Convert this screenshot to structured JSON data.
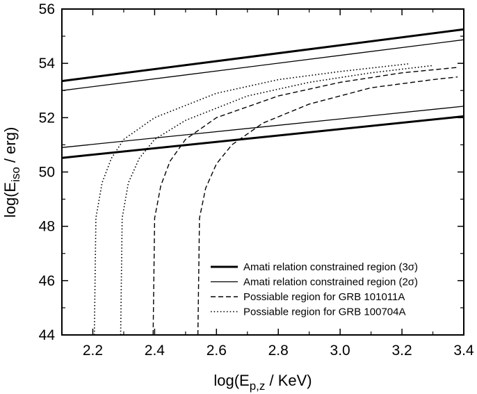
{
  "chart_data": {
    "type": "line",
    "xlabel": "log(E",
    "xlabel_sub": "p,z",
    "xlabel_tail": " / KeV)",
    "ylabel": "log(E",
    "ylabel_sub": "iso",
    "ylabel_tail": " / erg)",
    "xlim": [
      2.1,
      3.4
    ],
    "ylim": [
      44,
      56
    ],
    "x_ticks": [
      "2.2",
      "2.4",
      "2.6",
      "2.8",
      "3.0",
      "3.2",
      "3.4"
    ],
    "y_ticks": [
      "44",
      "46",
      "48",
      "50",
      "52",
      "54",
      "56"
    ],
    "grid": false,
    "legend_position": "bottom-right",
    "series": [
      {
        "name": "Amati relation constrained region (3σ)",
        "style": "thick-solid",
        "lines": [
          [
            [
              2.1,
              53.35
            ],
            [
              3.4,
              55.25
            ]
          ],
          [
            [
              2.1,
              50.52
            ],
            [
              3.4,
              52.05
            ]
          ]
        ]
      },
      {
        "name": "Amati relation constrained region (2σ)",
        "style": "thin-solid",
        "lines": [
          [
            [
              2.1,
              53.0
            ],
            [
              3.4,
              54.87
            ]
          ],
          [
            [
              2.1,
              50.9
            ],
            [
              3.4,
              52.42
            ]
          ]
        ]
      },
      {
        "name": "Possiable region for GRB 101011A",
        "style": "dashed",
        "lines": [
          [
            [
              2.395,
              44.0
            ],
            [
              2.4,
              48.3
            ],
            [
              2.42,
              49.5
            ],
            [
              2.45,
              50.4
            ],
            [
              2.5,
              51.2
            ],
            [
              2.6,
              52.0
            ],
            [
              2.8,
              52.8
            ],
            [
              3.0,
              53.3
            ],
            [
              3.2,
              53.65
            ],
            [
              3.38,
              53.85
            ]
          ],
          [
            [
              2.54,
              44.0
            ],
            [
              2.545,
              48.3
            ],
            [
              2.565,
              49.4
            ],
            [
              2.6,
              50.3
            ],
            [
              2.65,
              51.0
            ],
            [
              2.75,
              51.8
            ],
            [
              2.9,
              52.5
            ],
            [
              3.1,
              53.1
            ],
            [
              3.3,
              53.4
            ],
            [
              3.38,
              53.5
            ]
          ]
        ]
      },
      {
        "name": "Possiable region for GRB 100704A",
        "style": "dotted",
        "lines": [
          [
            [
              2.205,
              44.0
            ],
            [
              2.21,
              48.3
            ],
            [
              2.23,
              49.6
            ],
            [
              2.26,
              50.5
            ],
            [
              2.3,
              51.2
            ],
            [
              2.4,
              52.0
            ],
            [
              2.6,
              52.9
            ],
            [
              2.8,
              53.4
            ],
            [
              3.0,
              53.7
            ],
            [
              3.22,
              53.98
            ]
          ],
          [
            [
              2.29,
              44.0
            ],
            [
              2.295,
              48.3
            ],
            [
              2.315,
              49.6
            ],
            [
              2.35,
              50.5
            ],
            [
              2.4,
              51.2
            ],
            [
              2.5,
              51.9
            ],
            [
              2.7,
              52.8
            ],
            [
              2.9,
              53.3
            ],
            [
              3.1,
              53.65
            ],
            [
              3.3,
              53.92
            ]
          ]
        ]
      }
    ]
  }
}
